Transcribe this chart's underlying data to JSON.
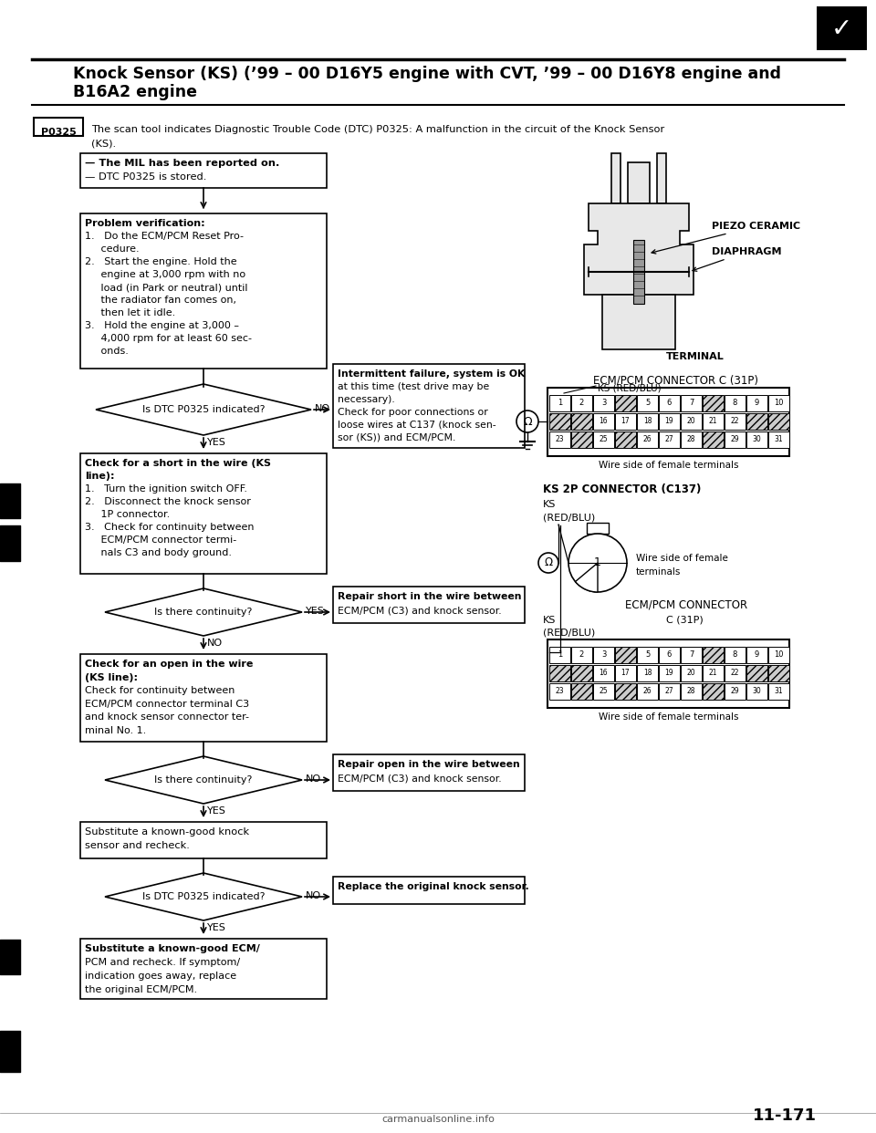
{
  "title_line1": "Knock Sensor (KS) (’99 – 00 D16Y5 engine with CVT, ’99 – 00 D16Y8 engine and",
  "title_line2": "B16A2 engine",
  "page_number": "11-171",
  "bg_color": "#ffffff",
  "dtc_code": "P0325",
  "dtc_description_line1": "The scan tool indicates Diagnostic Trouble Code (DTC) P0325: A malfunction in the circuit of the Knock Sensor",
  "dtc_description_line2": "(KS).",
  "box1_lines": [
    "— The MIL has been reported on.",
    "— DTC P0325 is stored."
  ],
  "box2_title": "Problem verification:",
  "box2_lines": [
    "1.   Do the ECM/PCM Reset Pro-",
    "     cedure.",
    "2.   Start the engine. Hold the",
    "     engine at 3,000 rpm with no",
    "     load (in Park or neutral) until",
    "     the radiator fan comes on,",
    "     then let it idle.",
    "3.   Hold the engine at 3,000 –",
    "     4,000 rpm for at least 60 sec-",
    "     onds."
  ],
  "diamond1_text": "Is DTC P0325 indicated?",
  "box_intermittent_title": "Intermittent failure, system is OK",
  "box_intermittent_lines": [
    "at this time (test drive may be",
    "necessary).",
    "Check for poor connections or",
    "loose wires at C137 (knock sen-",
    "sor (KS)) and ECM/PCM."
  ],
  "box3_lines": [
    "Check for a short in the wire (KS",
    "line):",
    "1.   Turn the ignition switch OFF.",
    "2.   Disconnect the knock sensor",
    "     1P connector.",
    "3.   Check for continuity between",
    "     ECM/PCM connector termi-",
    "     nals C3 and body ground."
  ],
  "diamond2_text": "Is there continuity?",
  "box_repair_short_lines": [
    "Repair short in the wire between",
    "ECM/PCM (C3) and knock sensor."
  ],
  "box4_lines": [
    "Check for an open in the wire",
    "(KS line):",
    "Check for continuity between",
    "ECM/PCM connector terminal C3",
    "and knock sensor connector ter-",
    "minal No. 1."
  ],
  "diamond3_text": "Is there continuity?",
  "box_repair_open_lines": [
    "Repair open in the wire between",
    "ECM/PCM (C3) and knock sensor."
  ],
  "box5_lines": [
    "Substitute a known-good knock",
    "sensor and recheck."
  ],
  "diamond4_text": "Is DTC P0325 indicated?",
  "box_replace_text": "Replace the original knock sensor.",
  "box6_lines": [
    "Substitute a known-good ECM/",
    "PCM and recheck. If symptom/",
    "indication goes away, replace",
    "the original ECM/PCM."
  ],
  "label_piezo": "PIEZO CERAMIC",
  "label_diaphragm": "DIAPHRAGM",
  "label_terminal": "TERMINAL",
  "label_ecm_c31p": "ECM/PCM CONNECTOR C (31P)",
  "label_ks_redblu": "KS (RED/BLU)",
  "label_wire_side1": "Wire side of female terminals",
  "label_ks_2p": "KS 2P CONNECTOR (C137)",
  "label_ks": "KS",
  "label_redblu": "(RED/BLU)",
  "label_wire_side_female": "Wire side of female",
  "label_terminals": "terminals",
  "label_ecm_connector": "ECM/PCM CONNECTOR",
  "label_c31p": "C (31P)",
  "label_wire_side3": "Wire side of female terminals",
  "label_yes": "YES",
  "label_no": "NO",
  "website": "carmanualsonline.info",
  "pin_row1": [
    "1",
    "2",
    "3",
    "",
    "5",
    "6",
    "7",
    "",
    "8",
    "9",
    "10"
  ],
  "pin_row2": [
    "",
    "",
    "16",
    "17",
    "18",
    "19",
    "20",
    "21",
    "22",
    "",
    ""
  ],
  "pin_row3": [
    "23",
    "",
    "25",
    "",
    "26",
    "27",
    "28",
    "",
    "29",
    "30",
    "31"
  ]
}
